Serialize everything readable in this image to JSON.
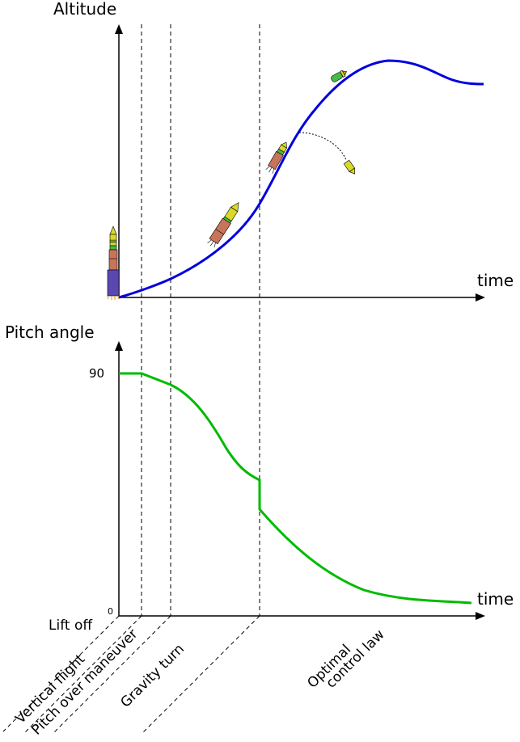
{
  "diagram": {
    "top_plot": {
      "y_axis_label": "Altitude",
      "x_axis_label": "time",
      "curve_color": "#0000dd"
    },
    "bottom_plot": {
      "y_axis_label": "Pitch angle",
      "x_axis_label": "time",
      "y_tick_max": "90",
      "y_tick_min": "0",
      "curve_color": "#00bb00"
    },
    "phases": {
      "lift_off": "Lift off",
      "vertical_flight": "Vertical flight",
      "pitch_over": "Pitch over maneuver",
      "gravity_turn": "Gravity turn",
      "optimal_line1": "Optimal",
      "optimal_line2": "control law"
    },
    "icons": [
      "rocket-icon",
      "rocket-stage-icon",
      "payload-icon",
      "jettisoned-fairing-icon"
    ]
  }
}
